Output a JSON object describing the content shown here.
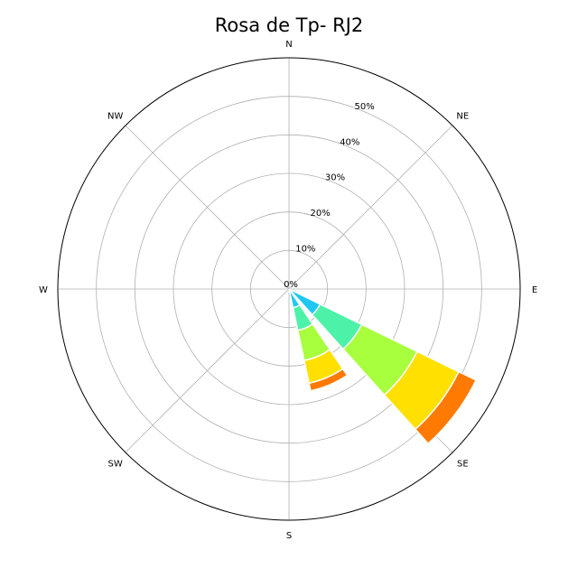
{
  "chart_data": {
    "type": "windrose",
    "title": "Rosa de Tp- RJ2",
    "directions": [
      "N",
      "NE",
      "E",
      "SE",
      "S",
      "SW",
      "W",
      "NW"
    ],
    "radial_ticks": [
      "0%",
      "10%",
      "20%",
      "30%",
      "40%",
      "50%"
    ],
    "rmax": 60,
    "grid": true,
    "colors": [
      "#1ec8f0",
      "#4cf2a8",
      "#a8ff3e",
      "#ffe000",
      "#ff7a00"
    ],
    "sectors": [
      {
        "direction_deg": 127,
        "stacks": [
          {
            "from": 0,
            "to": 9
          },
          {
            "from": 9,
            "to": 21
          },
          {
            "from": 21,
            "to": 37
          },
          {
            "from": 37,
            "to": 49
          },
          {
            "from": 49,
            "to": 54
          }
        ]
      },
      {
        "direction_deg": 157,
        "stacks": [
          {
            "from": 0,
            "to": 5
          },
          {
            "from": 5,
            "to": 11
          },
          {
            "from": 11,
            "to": 19
          },
          {
            "from": 19,
            "to": 25
          },
          {
            "from": 25,
            "to": 27
          }
        ]
      }
    ]
  }
}
